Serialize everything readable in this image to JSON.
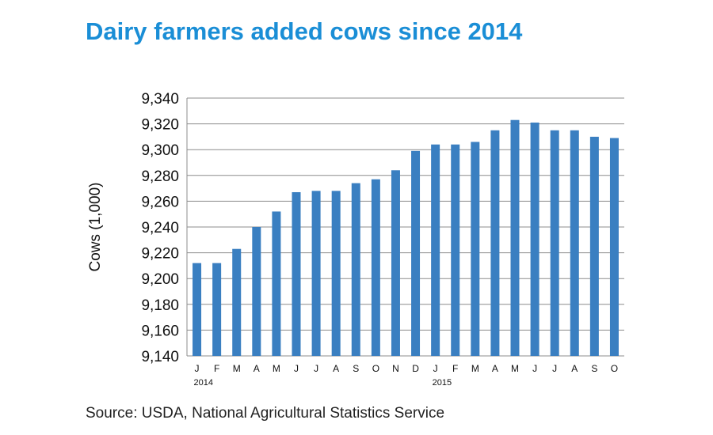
{
  "title": "Dairy farmers added cows since 2014",
  "source": "Source: USDA, National Agricultural Statistics Service",
  "colors": {
    "title": "#1a8ed6",
    "bar": "#3a7fc1",
    "grid": "#8c8c8c"
  },
  "chart_data": {
    "type": "bar",
    "title": "Dairy farmers added cows since 2014",
    "xlabel": "",
    "ylabel": "Cows (1,000)",
    "ylim": [
      9140,
      9340
    ],
    "yticks": [
      9140,
      9160,
      9180,
      9200,
      9220,
      9240,
      9260,
      9280,
      9300,
      9320,
      9340
    ],
    "ytick_labels": [
      "9,140",
      "9,160",
      "9,180",
      "9,200",
      "9,220",
      "9,240",
      "9,260",
      "9,280",
      "9,300",
      "9,320",
      "9,340"
    ],
    "grid": true,
    "categories": [
      "J",
      "F",
      "M",
      "A",
      "M",
      "J",
      "J",
      "A",
      "S",
      "O",
      "N",
      "D",
      "J",
      "F",
      "M",
      "A",
      "M",
      "J",
      "J",
      "A",
      "S",
      "O"
    ],
    "year_labels": [
      {
        "index": 0,
        "label": "2014"
      },
      {
        "index": 12,
        "label": "2015"
      }
    ],
    "values": [
      9212,
      9212,
      9223,
      9240,
      9252,
      9267,
      9268,
      9268,
      9274,
      9277,
      9284,
      9299,
      9304,
      9304,
      9306,
      9315,
      9323,
      9321,
      9315,
      9315,
      9310,
      9309
    ]
  }
}
